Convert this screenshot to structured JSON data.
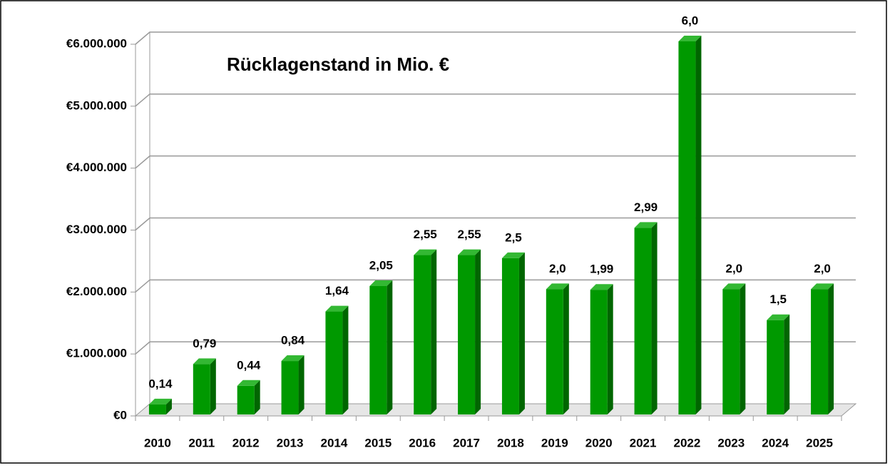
{
  "chart_data": {
    "type": "bar",
    "title": "Rücklagenstand in Mio. €",
    "categories": [
      "2010",
      "2011",
      "2012",
      "2013",
      "2014",
      "2015",
      "2016",
      "2017",
      "2018",
      "2019",
      "2020",
      "2021",
      "2022",
      "2023",
      "2024",
      "2025"
    ],
    "values": [
      140000,
      790000,
      440000,
      840000,
      1640000,
      2050000,
      2550000,
      2550000,
      2500000,
      2000000,
      1990000,
      2990000,
      6000000,
      2000000,
      1500000,
      2000000
    ],
    "value_labels": [
      "0,14",
      "0,79",
      "0,44",
      "0,84",
      "1,64",
      "2,05",
      "2,55",
      "2,55",
      "2,5",
      "2,0",
      "1,99",
      "2,99",
      "6,0",
      "2,0",
      "1,5",
      "2,0"
    ],
    "color": "#009900",
    "ylim": [
      0,
      6000000
    ],
    "yticks": [
      {
        "value": 0,
        "label": "€0"
      },
      {
        "value": 1000000,
        "label": "€1.000.000"
      },
      {
        "value": 2000000,
        "label": "€2.000.000"
      },
      {
        "value": 3000000,
        "label": "€3.000.000"
      },
      {
        "value": 4000000,
        "label": "€4.000.000"
      },
      {
        "value": 5000000,
        "label": "€5.000.000"
      },
      {
        "value": 6000000,
        "label": "€6.000.000"
      }
    ],
    "grid": true
  }
}
